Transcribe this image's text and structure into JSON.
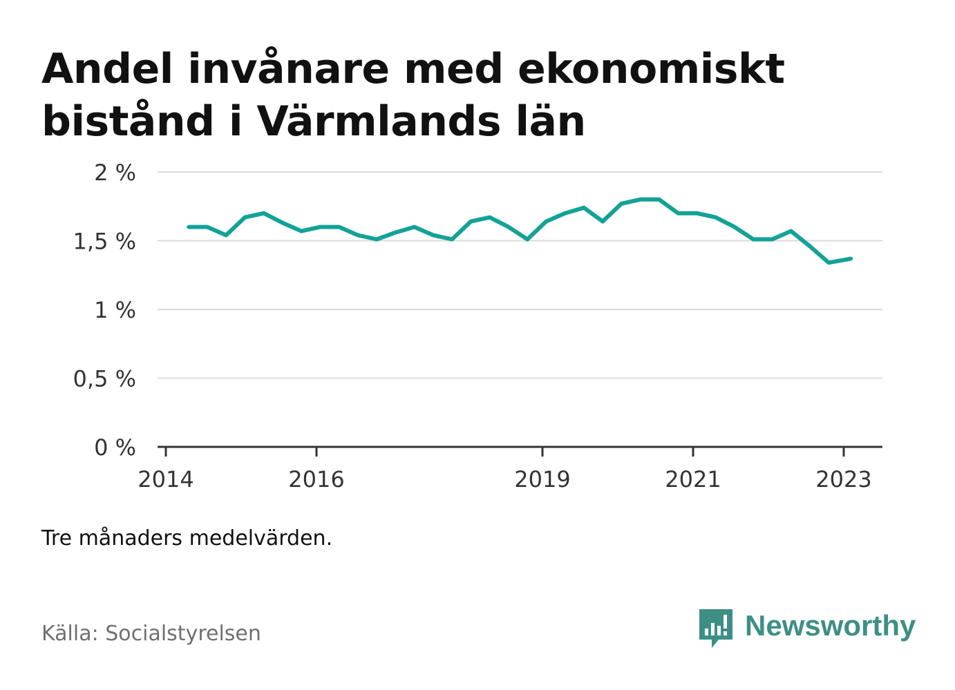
{
  "title": "Andel invånare med ekonomiskt bistånd i Värmlands län",
  "note": "Tre månaders medelvärden.",
  "source": "Källa: Socialstyrelsen",
  "brand": {
    "name": "Newsworthy",
    "color": "#3d8f85",
    "icon": "newsworthy-chart-bubble-icon"
  },
  "chart_data": {
    "type": "line",
    "title": "Andel invånare med ekonomiskt bistånd i Värmlands län",
    "xlabel": "",
    "ylabel": "",
    "x_unit": "year",
    "ylim": [
      0,
      2
    ],
    "y_ticks": [
      {
        "value": 0,
        "label": "0 %"
      },
      {
        "value": 0.5,
        "label": "0,5 %"
      },
      {
        "value": 1,
        "label": "1 %"
      },
      {
        "value": 1.5,
        "label": "1,5 %"
      },
      {
        "value": 2,
        "label": "2 %"
      }
    ],
    "x_ticks": [
      {
        "value": 2014,
        "label": "2014"
      },
      {
        "value": 2016,
        "label": "2016"
      },
      {
        "value": 2019,
        "label": "2019"
      },
      {
        "value": 2021,
        "label": "2021"
      },
      {
        "value": 2023,
        "label": "2023"
      }
    ],
    "grid": true,
    "line_color": "#13a297",
    "series": [
      {
        "x": [
          2014.3,
          2014.55,
          2014.8,
          2015.05,
          2015.3,
          2015.55,
          2015.8,
          2016.05,
          2016.3,
          2016.55,
          2016.8,
          2017.05,
          2017.3,
          2017.55,
          2017.8,
          2018.05,
          2018.3,
          2018.55,
          2018.8,
          2019.05,
          2019.3,
          2019.55,
          2019.8,
          2020.05,
          2020.3,
          2020.55,
          2020.8,
          2021.05,
          2021.3,
          2021.55,
          2021.8,
          2022.05,
          2022.3,
          2022.55,
          2022.8,
          2023.1
        ],
        "values": [
          1.6,
          1.6,
          1.54,
          1.67,
          1.7,
          1.63,
          1.57,
          1.6,
          1.6,
          1.54,
          1.51,
          1.56,
          1.6,
          1.54,
          1.51,
          1.64,
          1.67,
          1.6,
          1.51,
          1.64,
          1.7,
          1.74,
          1.64,
          1.77,
          1.8,
          1.8,
          1.7,
          1.7,
          1.67,
          1.6,
          1.51,
          1.51,
          1.57,
          1.46,
          1.34,
          1.37
        ]
      }
    ]
  }
}
